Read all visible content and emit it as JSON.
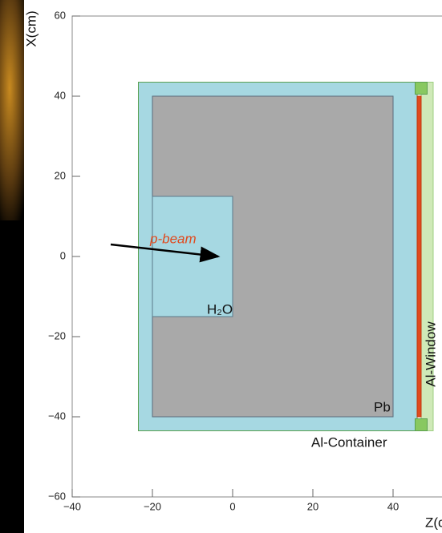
{
  "chart_data": {
    "type": "geometry",
    "xlabel": "Z(cm)",
    "ylabel": "X(cm)",
    "xlim": [
      -40,
      52.2
    ],
    "ylim": [
      -60,
      60
    ],
    "xticks": [
      {
        "value": -40,
        "label": "−40"
      },
      {
        "value": -20,
        "label": "−20"
      },
      0,
      20,
      40
    ],
    "yticks": [
      {
        "value": -60,
        "label": "−60"
      },
      {
        "value": -40,
        "label": "−40"
      },
      {
        "value": -20,
        "label": "−20"
      },
      0,
      20,
      40,
      60
    ],
    "shapes": [
      {
        "z": [
          -23.5,
          46
        ],
        "x": [
          -43.5,
          43.5
        ],
        "fill": "#a6d8e2",
        "stroke": "#5aa050"
      },
      {
        "z": [
          -20,
          40
        ],
        "x": [
          -40,
          40
        ],
        "fill": "#a9a9a9",
        "stroke": "#5a6a7a"
      },
      {
        "z": [
          -20,
          0
        ],
        "x": [
          -15,
          15
        ],
        "fill": "#a6d8e2",
        "stroke": "#5a7a8a"
      },
      {
        "z": [
          47,
          50
        ],
        "x": [
          -43.5,
          43.5
        ],
        "fill": "#cfe9b8",
        "stroke": "#9ccf80"
      },
      {
        "z": [
          46,
          47
        ],
        "x": [
          -40,
          40
        ],
        "fill": "#e04a1e",
        "stroke": "#c03a10"
      },
      {
        "z": [
          45.5,
          48.5
        ],
        "x": [
          40.5,
          43.5
        ],
        "fill": "#88c860",
        "stroke": "#5aa050"
      },
      {
        "z": [
          45.5,
          48.5
        ],
        "x": [
          -43.5,
          -40.5
        ],
        "fill": "#88c860",
        "stroke": "#5aa050"
      }
    ],
    "arrow": {
      "z": [
        -30.4,
        -3.6
      ],
      "x": [
        3,
        0
      ],
      "color": "#000000"
    },
    "annotations": [
      "p-beam",
      "H₂O",
      "Pb",
      "Al-Container",
      "Al-Window"
    ]
  }
}
